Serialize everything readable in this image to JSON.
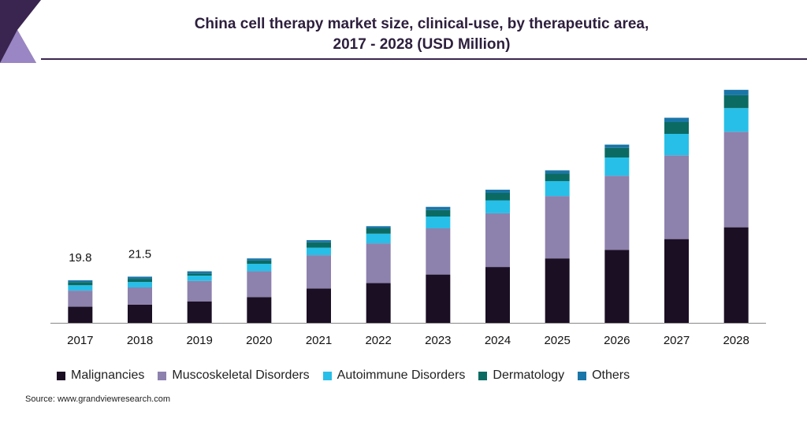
{
  "chart_data": {
    "type": "bar",
    "stacked": true,
    "title": "China cell therapy market size, clinical-use, by therapeutic area,",
    "subtitle": "2017 - 2028 (USD Million)",
    "categories": [
      "2017",
      "2018",
      "2019",
      "2020",
      "2021",
      "2022",
      "2023",
      "2024",
      "2025",
      "2026",
      "2027",
      "2028"
    ],
    "series": [
      {
        "name": "Malignancies",
        "color": "#1b0f24",
        "values": [
          7.5,
          8.5,
          10.0,
          12.0,
          16.0,
          18.5,
          22.5,
          26.0,
          30.0,
          34.0,
          39.0,
          44.5
        ]
      },
      {
        "name": "Muscoskeletal Disorders",
        "color": "#8d81ad",
        "values": [
          7.5,
          8.0,
          9.5,
          12.0,
          15.5,
          18.5,
          21.5,
          25.0,
          29.0,
          34.5,
          39.0,
          44.5
        ]
      },
      {
        "name": "Autoimmune Disorders",
        "color": "#27bfe8",
        "values": [
          2.5,
          2.5,
          2.5,
          3.5,
          3.5,
          4.5,
          5.5,
          6.0,
          7.0,
          8.5,
          10.0,
          11.0
        ]
      },
      {
        "name": "Dermatology",
        "color": "#0b6b63",
        "values": [
          1.5,
          1.5,
          1.0,
          1.5,
          2.5,
          2.5,
          3.0,
          3.5,
          3.5,
          4.5,
          5.5,
          6.0
        ]
      },
      {
        "name": "Others",
        "color": "#1a76a8",
        "values": [
          0.8,
          1.0,
          1.0,
          1.0,
          1.0,
          1.0,
          1.5,
          1.5,
          1.5,
          1.5,
          2.0,
          2.5
        ]
      }
    ],
    "data_labels": [
      {
        "category": "2017",
        "text": "19.8"
      },
      {
        "category": "2018",
        "text": "21.5"
      }
    ],
    "ylim": [
      0,
      110
    ],
    "xlabel": "",
    "ylabel": "",
    "grid": false,
    "legend_position": "bottom"
  },
  "source": "Source: www.grandviewresearch.com",
  "logo_colors": {
    "dark": "#3a2550",
    "light": "#9a86c4"
  }
}
